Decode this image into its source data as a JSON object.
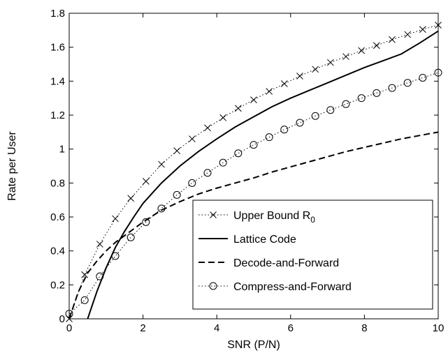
{
  "chart_data": {
    "type": "line",
    "xlabel": "SNR (P/N)",
    "ylabel": "Rate per User",
    "xlim": [
      0,
      10
    ],
    "ylim": [
      0,
      1.8
    ],
    "xticks": [
      0,
      2,
      4,
      6,
      8,
      10
    ],
    "yticks": [
      0,
      0.2,
      0.4,
      0.6,
      0.8,
      1,
      1.2,
      1.4,
      1.6,
      1.8
    ],
    "xtick_labels": [
      "0",
      "2",
      "4",
      "6",
      "8",
      "10"
    ],
    "ytick_labels": [
      "0",
      "0.2",
      "0.4",
      "0.6",
      "0.8",
      "1",
      "1.2",
      "1.4",
      "1.6",
      "1.8"
    ],
    "grid": false,
    "legend_position": "lower-right",
    "series": [
      {
        "name": "Upper Bound R",
        "name_subscript": "0",
        "line": "dotted",
        "marker": "x",
        "x": [
          0,
          0.42,
          0.83,
          1.25,
          1.67,
          2.08,
          2.5,
          2.92,
          3.33,
          3.75,
          4.17,
          4.58,
          5.0,
          5.42,
          5.83,
          6.25,
          6.67,
          7.08,
          7.5,
          7.92,
          8.33,
          8.75,
          9.17,
          9.58,
          10.0
        ],
        "y": [
          0,
          0.26,
          0.44,
          0.59,
          0.71,
          0.81,
          0.91,
          0.99,
          1.06,
          1.125,
          1.185,
          1.24,
          1.29,
          1.34,
          1.385,
          1.43,
          1.47,
          1.51,
          1.545,
          1.58,
          1.61,
          1.645,
          1.675,
          1.705,
          1.73
        ]
      },
      {
        "name": "Lattice Code",
        "line": "solid",
        "marker": "none",
        "x": [
          0.5,
          0.75,
          1.0,
          1.25,
          1.5,
          1.75,
          2.0,
          2.5,
          3.0,
          3.5,
          4.0,
          4.5,
          5.0,
          5.5,
          6.0,
          6.5,
          7.0,
          7.5,
          8.0,
          8.5,
          9.0,
          9.5,
          10.0
        ],
        "y": [
          0,
          0.16,
          0.3,
          0.42,
          0.515,
          0.6,
          0.68,
          0.8,
          0.9,
          0.985,
          1.06,
          1.13,
          1.19,
          1.25,
          1.3,
          1.345,
          1.39,
          1.435,
          1.48,
          1.52,
          1.56,
          1.625,
          1.695
        ]
      },
      {
        "name": "Decode-and-Forward",
        "line": "dashed",
        "marker": "none",
        "x": [
          0,
          0.25,
          0.5,
          0.75,
          1.0,
          1.25,
          1.5,
          2.0,
          2.5,
          3.0,
          3.5,
          4.0,
          4.5,
          5.0,
          5.5,
          6.0,
          6.5,
          7.0,
          7.5,
          8.0,
          8.5,
          9.0,
          9.5,
          10.0
        ],
        "y": [
          0,
          0.16,
          0.27,
          0.34,
          0.4,
          0.45,
          0.49,
          0.57,
          0.64,
          0.69,
          0.735,
          0.77,
          0.8,
          0.83,
          0.865,
          0.895,
          0.925,
          0.955,
          0.985,
          1.01,
          1.035,
          1.06,
          1.08,
          1.1
        ]
      },
      {
        "name": "Compress-and-Forward",
        "line": "dotted",
        "marker": "circle",
        "x": [
          0,
          0.42,
          0.83,
          1.25,
          1.67,
          2.08,
          2.5,
          2.92,
          3.33,
          3.75,
          4.17,
          4.58,
          5.0,
          5.42,
          5.83,
          6.25,
          6.67,
          7.08,
          7.5,
          7.92,
          8.33,
          8.75,
          9.17,
          9.58,
          10.0
        ],
        "y": [
          0.03,
          0.11,
          0.25,
          0.37,
          0.48,
          0.57,
          0.65,
          0.73,
          0.8,
          0.86,
          0.92,
          0.975,
          1.025,
          1.07,
          1.115,
          1.155,
          1.195,
          1.23,
          1.265,
          1.3,
          1.33,
          1.36,
          1.39,
          1.42,
          1.45
        ]
      }
    ]
  }
}
